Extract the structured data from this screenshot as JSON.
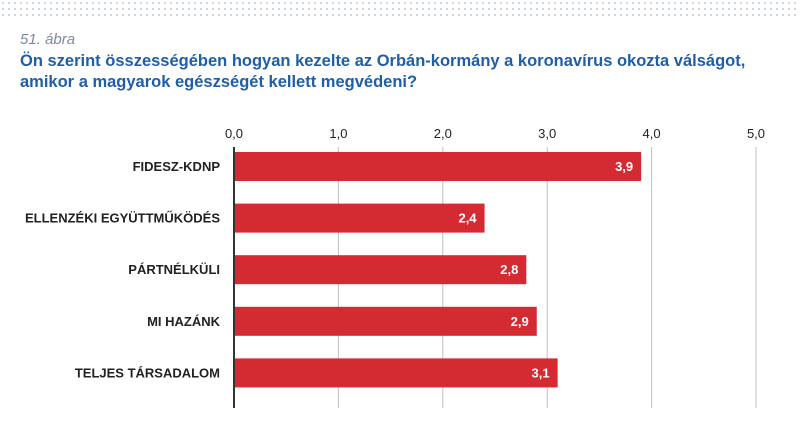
{
  "figure": {
    "number": "51. ábra",
    "title": "Ön szerint összességében hogyan kezelte az Orbán-kormány a koronavírus okozta válságot, amikor a magyarok egészségét kellett megvédeni?"
  },
  "colors": {
    "bar": "#d42a31",
    "gridline": "#bfbfbf",
    "axis": "#333333",
    "label": "#222222",
    "value_label": "#ffffff",
    "title": "#1f5ea8",
    "figure_number": "#7d8aa0"
  },
  "chart_data": {
    "type": "bar",
    "orientation": "horizontal",
    "categories": [
      "FIDESZ-KDNP",
      "ELLENZÉKI EGYÜTTMŰKÖDÉS",
      "PÁRTNÉLKÜLI",
      "MI HAZÁNK",
      "TELJES TÁRSADALOM"
    ],
    "values": [
      3.9,
      2.4,
      2.8,
      2.9,
      3.1
    ],
    "value_labels": [
      "3,9",
      "2,4",
      "2,8",
      "2,9",
      "3,1"
    ],
    "xlim": [
      0,
      5
    ],
    "ticks": [
      0,
      1,
      2,
      3,
      4,
      5
    ],
    "tick_labels": [
      "0,0",
      "1,0",
      "2,0",
      "3,0",
      "4,0",
      "5,0"
    ],
    "xlabel": "",
    "ylabel": "",
    "grid": true,
    "axis_position": "top",
    "legend": "none"
  }
}
